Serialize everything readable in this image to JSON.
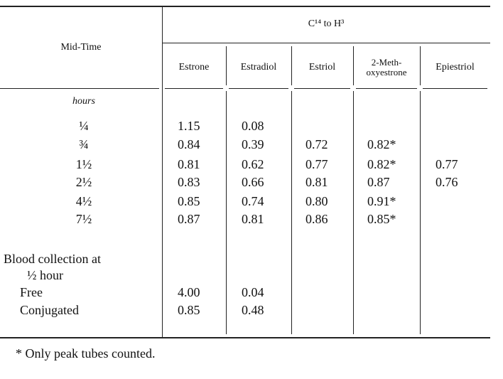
{
  "table": {
    "group_header": "C¹⁴ to H³",
    "columns": [
      "Mid-Time",
      "Estrone",
      "Estradiol",
      "Estriol",
      [
        "2-Meth-",
        "oxyestrone"
      ],
      "Epiestriol"
    ],
    "unit": "hours",
    "rows": [
      {
        "label": "¼",
        "cells": [
          "1.15",
          "0.08",
          null,
          null,
          null
        ]
      },
      {
        "label": "¾",
        "cells": [
          "0.84",
          "0.39",
          "0.72",
          "0.82*",
          null
        ]
      },
      {
        "label": "1½",
        "cells": [
          "0.81",
          "0.62",
          "0.77",
          "0.82*",
          "0.77"
        ]
      },
      {
        "label": "2½",
        "cells": [
          "0.83",
          "0.66",
          "0.81",
          "0.87",
          "0.76"
        ]
      },
      {
        "label": "4½",
        "cells": [
          "0.85",
          "0.74",
          "0.80",
          "0.91*",
          null
        ]
      },
      {
        "label": "7½",
        "cells": [
          "0.87",
          "0.81",
          "0.86",
          "0.85*",
          null
        ]
      }
    ],
    "section": [
      "Blood collection at",
      "½ hour"
    ],
    "section_rows": [
      {
        "label": "Free",
        "cells": [
          "4.00",
          "0.04",
          null,
          null,
          null
        ]
      },
      {
        "label": "Conjugated",
        "cells": [
          "0.85",
          "0.48",
          null,
          null,
          null
        ]
      }
    ],
    "footnote": "* Only peak tubes counted."
  }
}
